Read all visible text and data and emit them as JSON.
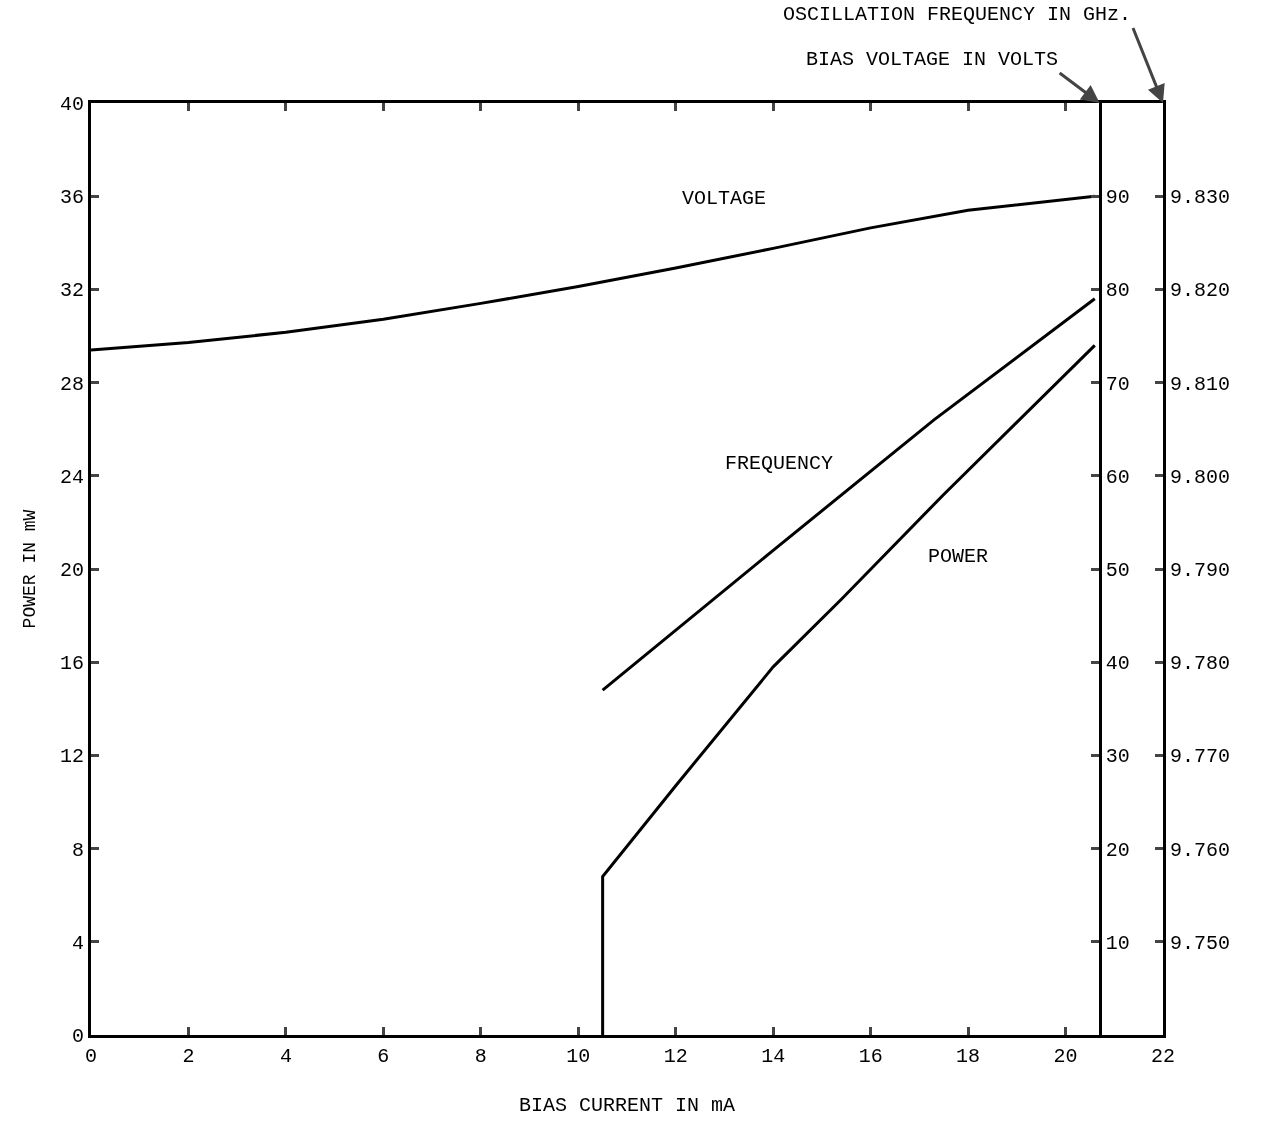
{
  "chart_data": {
    "type": "line",
    "xlabel": "BIAS CURRENT IN mA",
    "ylabel": "POWER IN mW",
    "y2label": "BIAS VOLTAGE IN VOLTS",
    "y3label": "OSCILLATION FREQUENCY IN GHz.",
    "xlim": [
      0,
      22
    ],
    "xticks": [
      0,
      2,
      4,
      6,
      8,
      10,
      12,
      14,
      16,
      18,
      20,
      22
    ],
    "ylim": [
      0,
      40
    ],
    "yticks": [
      0,
      4,
      8,
      12,
      16,
      20,
      24,
      28,
      32,
      36,
      40
    ],
    "y2lim": [
      0,
      100
    ],
    "y2ticks": [
      10,
      20,
      30,
      40,
      50,
      60,
      70,
      80,
      90
    ],
    "y3lim": [
      9.74,
      9.84
    ],
    "y3ticks": [
      {
        "value": 9.75,
        "label": "9.750"
      },
      {
        "value": 9.76,
        "label": "9.760"
      },
      {
        "value": 9.77,
        "label": "9.770"
      },
      {
        "value": 9.78,
        "label": "9.780"
      },
      {
        "value": 9.79,
        "label": "9.790"
      },
      {
        "value": 9.8,
        "label": "9.800"
      },
      {
        "value": 9.81,
        "label": "9.810"
      },
      {
        "value": 9.82,
        "label": "9.820"
      },
      {
        "value": 9.83,
        "label": "9.830"
      }
    ],
    "legend": false,
    "grid": false,
    "series": [
      {
        "name": "VOLTAGE",
        "color": "#000000",
        "axis": "y2",
        "x": [
          0,
          2,
          4,
          6,
          8,
          10,
          12,
          14,
          16,
          18,
          20.6
        ],
        "values": [
          73.5,
          74.3,
          75.4,
          76.8,
          78.5,
          80.3,
          82.3,
          84.4,
          86.6,
          88.5,
          90
        ]
      },
      {
        "name": "FREQUENCY",
        "color": "#000000",
        "axis": "y3",
        "x": [
          10.5,
          14,
          17.3,
          20.6
        ],
        "values": [
          9.777,
          9.792,
          9.806,
          9.819
        ]
      },
      {
        "name": "POWER",
        "color": "#000000",
        "axis": "y",
        "x": [
          10.5,
          10.5,
          12,
          14,
          15.4,
          17.5,
          20.6
        ],
        "values": [
          0,
          6.8,
          10.7,
          15.8,
          18.7,
          23.2,
          29.6
        ]
      }
    ]
  }
}
